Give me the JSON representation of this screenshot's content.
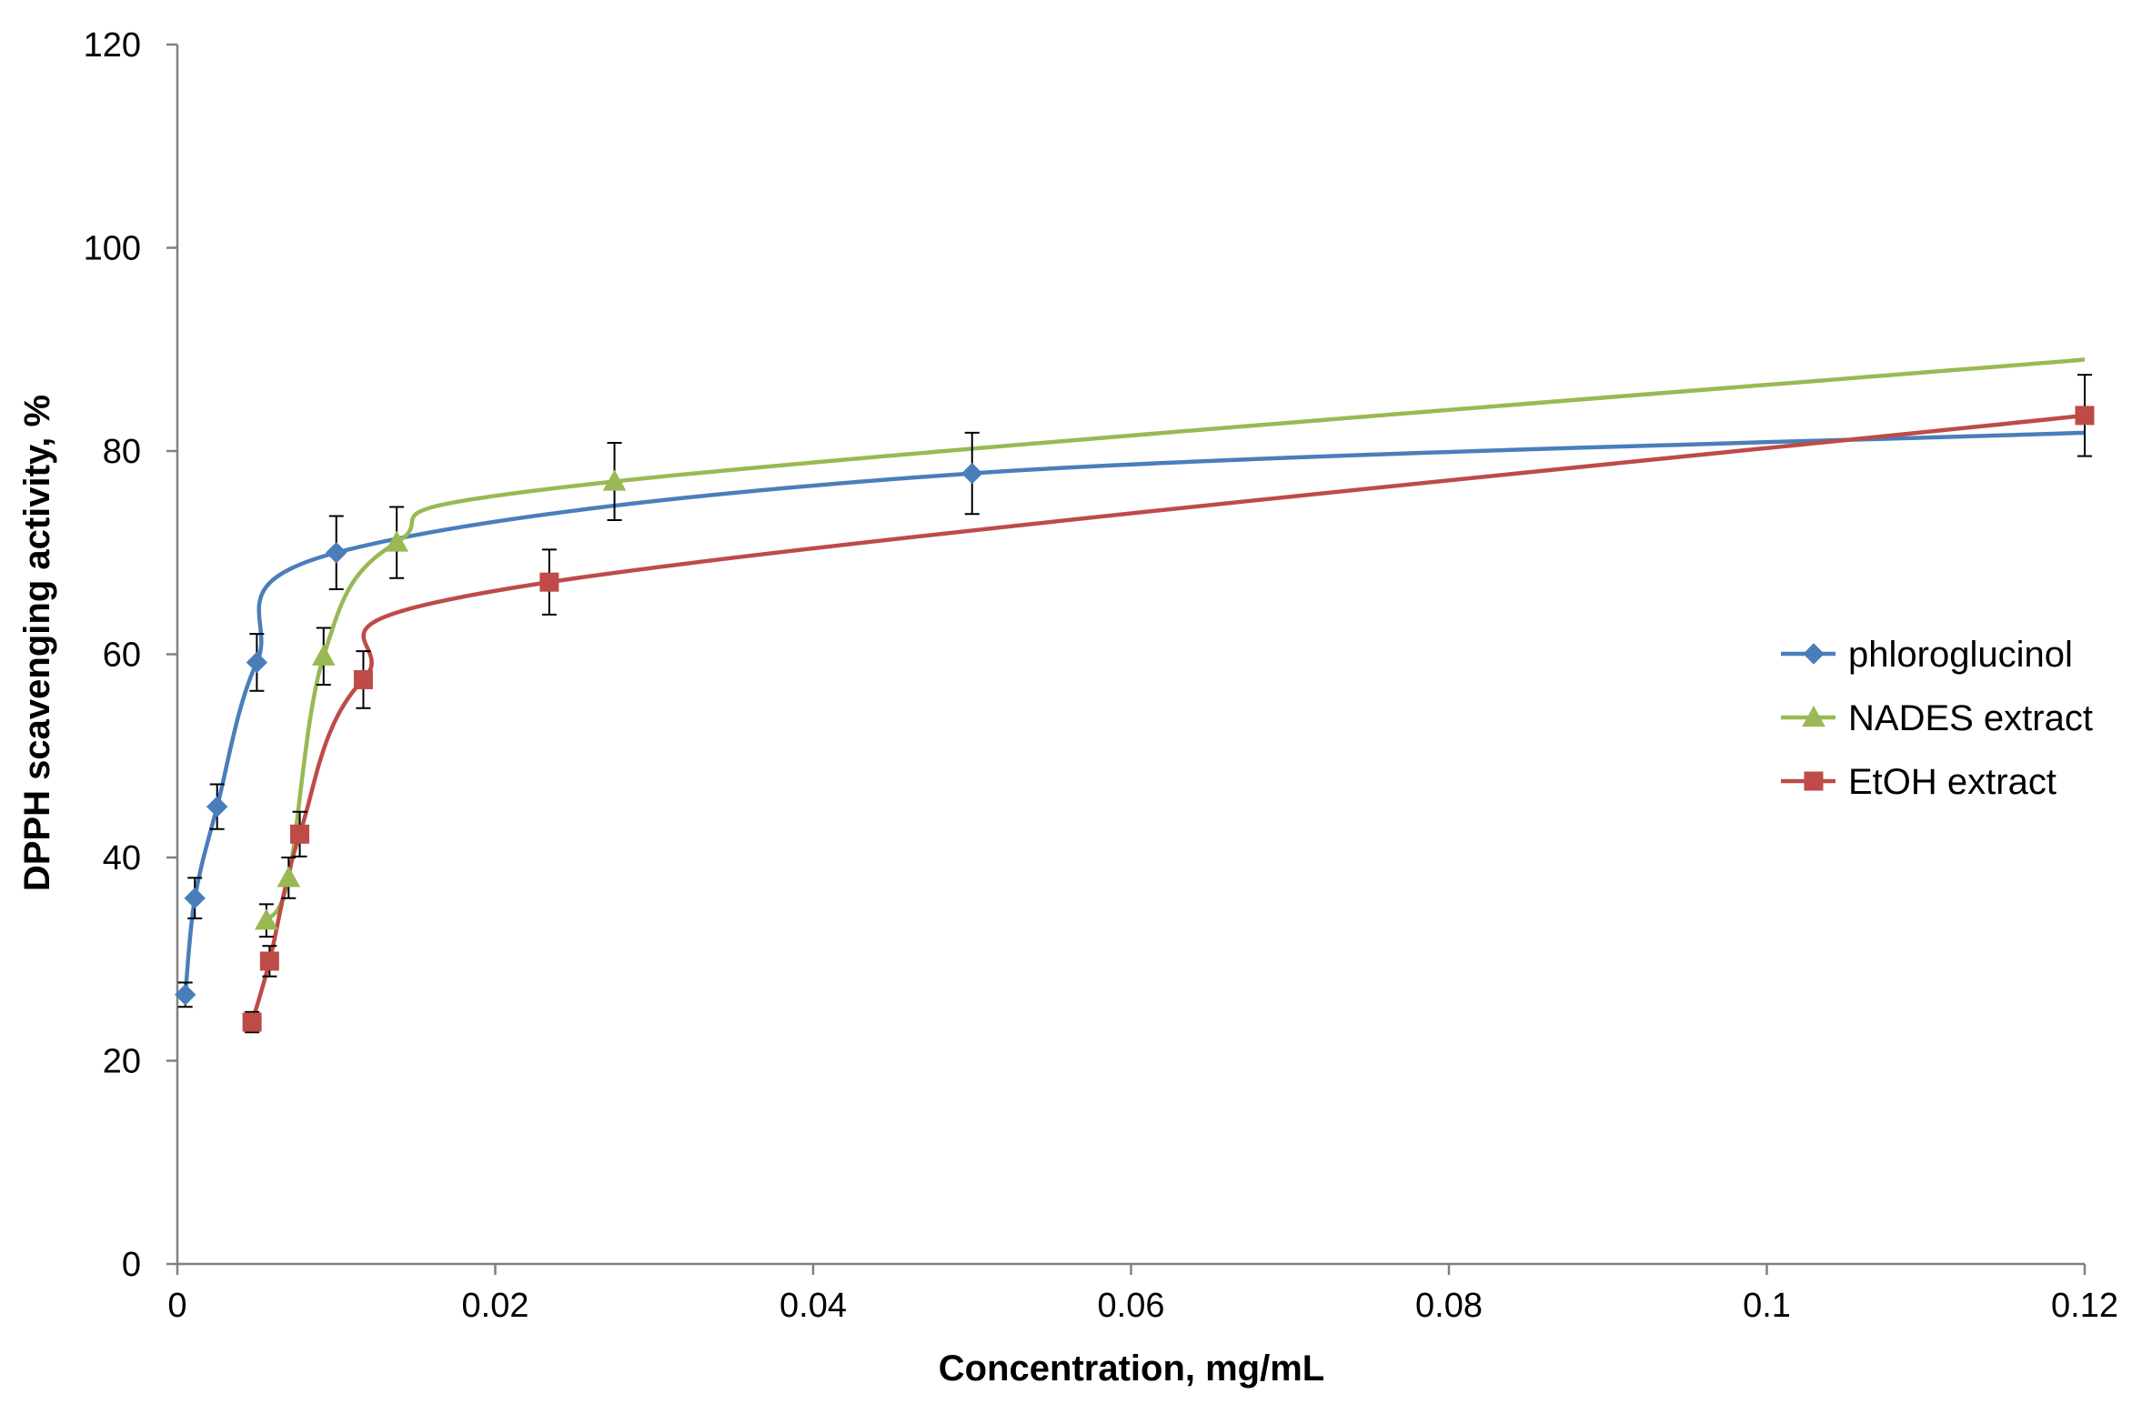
{
  "chart_data": {
    "type": "scatter",
    "title": "",
    "xlabel": "Concentration, mg/mL",
    "ylabel": "DPPH scavenging activity, %",
    "xlim": [
      0,
      0.12
    ],
    "ylim": [
      0,
      120
    ],
    "xticks": [
      0,
      0.02,
      0.04,
      0.06,
      0.08,
      0.1,
      0.12
    ],
    "xtick_labels": [
      "0",
      "0.02",
      "0.04",
      "0.06",
      "0.08",
      "0.1",
      "0.12"
    ],
    "yticks": [
      0,
      20,
      40,
      60,
      80,
      100,
      120
    ],
    "ytick_labels": [
      "0",
      "20",
      "40",
      "60",
      "80",
      "100",
      "120"
    ],
    "grid": false,
    "legend_position": "right",
    "series": [
      {
        "name": "phloroglucinol",
        "color": "#4A7EBB",
        "marker": "diamond",
        "points": [
          {
            "x": 0.0005,
            "y": 26.5,
            "err": 1.2
          },
          {
            "x": 0.0011,
            "y": 36.0,
            "err": 2.0
          },
          {
            "x": 0.0025,
            "y": 45.0,
            "err": 2.2
          },
          {
            "x": 0.005,
            "y": 59.2,
            "err": 2.8
          },
          {
            "x": 0.01,
            "y": 70.0,
            "err": 3.6
          },
          {
            "x": 0.05,
            "y": 77.8,
            "err": 4.0
          }
        ],
        "curve_end": {
          "x": 0.12,
          "y": 81.8
        }
      },
      {
        "name": "NADES extract",
        "color": "#98B954",
        "marker": "triangle",
        "points": [
          {
            "x": 0.0056,
            "y": 33.8,
            "err": 1.6
          },
          {
            "x": 0.007,
            "y": 38.0,
            "err": 2.0
          },
          {
            "x": 0.0092,
            "y": 59.8,
            "err": 2.8
          },
          {
            "x": 0.0138,
            "y": 71.0,
            "err": 3.5
          },
          {
            "x": 0.0275,
            "y": 77.0,
            "err": 3.8
          }
        ],
        "curve_end": {
          "x": 0.12,
          "y": 89.0
        }
      },
      {
        "name": "EtOH extract",
        "color": "#BE4B48",
        "marker": "square",
        "points": [
          {
            "x": 0.0047,
            "y": 23.8,
            "err": 1.0
          },
          {
            "x": 0.0058,
            "y": 29.8,
            "err": 1.5
          },
          {
            "x": 0.0077,
            "y": 42.3,
            "err": 2.2
          },
          {
            "x": 0.0117,
            "y": 57.5,
            "err": 2.8
          },
          {
            "x": 0.0234,
            "y": 67.1,
            "err": 3.2
          },
          {
            "x": 0.12,
            "y": 83.5,
            "err": 4.0
          }
        ]
      }
    ]
  }
}
